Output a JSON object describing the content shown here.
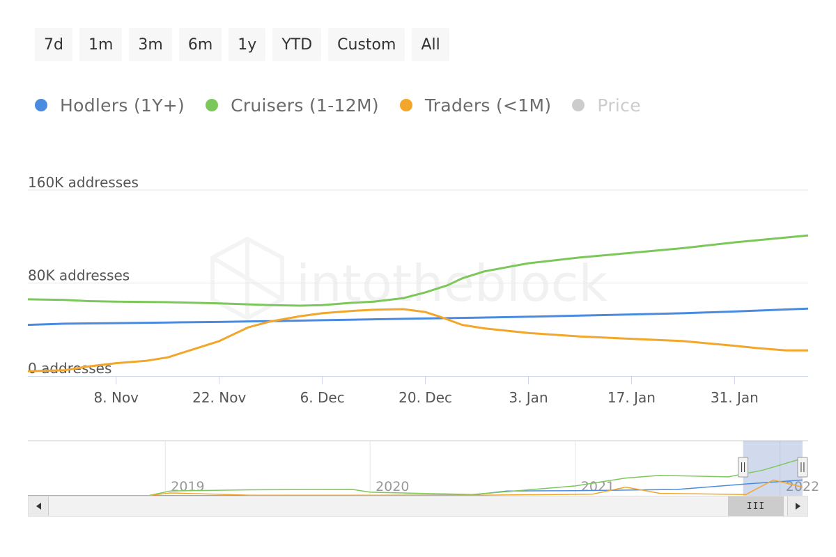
{
  "range_buttons": [
    "7d",
    "1m",
    "3m",
    "6m",
    "1y",
    "YTD",
    "Custom",
    "All"
  ],
  "legend": [
    {
      "label": "Hodlers (1Y+)",
      "color": "#4a8bdf",
      "visible": true
    },
    {
      "label": "Cruisers (1-12M)",
      "color": "#7cc75a",
      "visible": true
    },
    {
      "label": "Traders (<1M)",
      "color": "#f2a62b",
      "visible": true
    },
    {
      "label": "Price",
      "color": "#cccccc",
      "visible": false
    }
  ],
  "watermark": "intotheblock",
  "chart_data": {
    "type": "line",
    "y_unit": "addresses",
    "ylim": [
      0,
      160000
    ],
    "y_ticks": [
      {
        "value": 0,
        "label": "0 addresses"
      },
      {
        "value": 80000,
        "label": "80K addresses"
      },
      {
        "value": 160000,
        "label": "160K addresses"
      }
    ],
    "x_range": [
      "2021-10-27",
      "2022-02-10"
    ],
    "x_ticks": [
      {
        "date": "2021-11-08",
        "label": "8. Nov"
      },
      {
        "date": "2021-11-22",
        "label": "22. Nov"
      },
      {
        "date": "2021-12-06",
        "label": "6. Dec"
      },
      {
        "date": "2021-12-20",
        "label": "20. Dec"
      },
      {
        "date": "2022-01-03",
        "label": "3. Jan"
      },
      {
        "date": "2022-01-17",
        "label": "17. Jan"
      },
      {
        "date": "2022-01-31",
        "label": "31. Jan"
      }
    ],
    "series": [
      {
        "name": "Hodlers (1Y+)",
        "color": "#4a8bdf",
        "points": [
          [
            "2021-10-27",
            44000
          ],
          [
            "2021-11-01",
            45000
          ],
          [
            "2021-11-08",
            45500
          ],
          [
            "2021-11-15",
            46000
          ],
          [
            "2021-11-22",
            46500
          ],
          [
            "2021-11-29",
            47200
          ],
          [
            "2021-12-06",
            48000
          ],
          [
            "2021-12-13",
            48800
          ],
          [
            "2021-12-20",
            49500
          ],
          [
            "2021-12-27",
            50200
          ],
          [
            "2022-01-03",
            51000
          ],
          [
            "2022-01-10",
            52000
          ],
          [
            "2022-01-17",
            53000
          ],
          [
            "2022-01-24",
            54000
          ],
          [
            "2022-01-31",
            55500
          ],
          [
            "2022-02-10",
            58000
          ]
        ]
      },
      {
        "name": "Cruisers (1-12M)",
        "color": "#7cc75a",
        "points": [
          [
            "2021-10-27",
            66000
          ],
          [
            "2021-11-01",
            65500
          ],
          [
            "2021-11-04",
            64500
          ],
          [
            "2021-11-08",
            64000
          ],
          [
            "2021-11-15",
            63500
          ],
          [
            "2021-11-22",
            62500
          ],
          [
            "2021-11-29",
            61000
          ],
          [
            "2021-12-03",
            60500
          ],
          [
            "2021-12-06",
            61000
          ],
          [
            "2021-12-10",
            63000
          ],
          [
            "2021-12-13",
            64000
          ],
          [
            "2021-12-17",
            67000
          ],
          [
            "2021-12-20",
            72000
          ],
          [
            "2021-12-23",
            78000
          ],
          [
            "2021-12-25",
            84000
          ],
          [
            "2021-12-28",
            90000
          ],
          [
            "2022-01-03",
            97000
          ],
          [
            "2022-01-10",
            102000
          ],
          [
            "2022-01-17",
            106000
          ],
          [
            "2022-01-24",
            110000
          ],
          [
            "2022-01-31",
            115000
          ],
          [
            "2022-02-10",
            121000
          ]
        ]
      },
      {
        "name": "Traders (<1M)",
        "color": "#f2a62b",
        "points": [
          [
            "2021-10-27",
            4000
          ],
          [
            "2021-11-01",
            5000
          ],
          [
            "2021-11-04",
            8000
          ],
          [
            "2021-11-08",
            11000
          ],
          [
            "2021-11-12",
            13000
          ],
          [
            "2021-11-15",
            16000
          ],
          [
            "2021-11-19",
            24000
          ],
          [
            "2021-11-22",
            30000
          ],
          [
            "2021-11-24",
            36000
          ],
          [
            "2021-11-26",
            42000
          ],
          [
            "2021-11-29",
            47000
          ],
          [
            "2021-12-03",
            51500
          ],
          [
            "2021-12-06",
            54000
          ],
          [
            "2021-12-10",
            56000
          ],
          [
            "2021-12-13",
            57000
          ],
          [
            "2021-12-17",
            57500
          ],
          [
            "2021-12-20",
            55000
          ],
          [
            "2021-12-22",
            51000
          ],
          [
            "2021-12-25",
            44000
          ],
          [
            "2021-12-28",
            41000
          ],
          [
            "2022-01-03",
            37000
          ],
          [
            "2022-01-10",
            34000
          ],
          [
            "2022-01-17",
            32000
          ],
          [
            "2022-01-24",
            30000
          ],
          [
            "2022-01-31",
            26000
          ],
          [
            "2022-02-03",
            24000
          ],
          [
            "2022-02-07",
            22000
          ],
          [
            "2022-02-10",
            22000
          ]
        ]
      }
    ],
    "navigator": {
      "year_labels": [
        "2019",
        "2020",
        "2021",
        "2022"
      ],
      "selected_range": [
        "2021-10-27",
        "2022-02-10"
      ]
    }
  }
}
